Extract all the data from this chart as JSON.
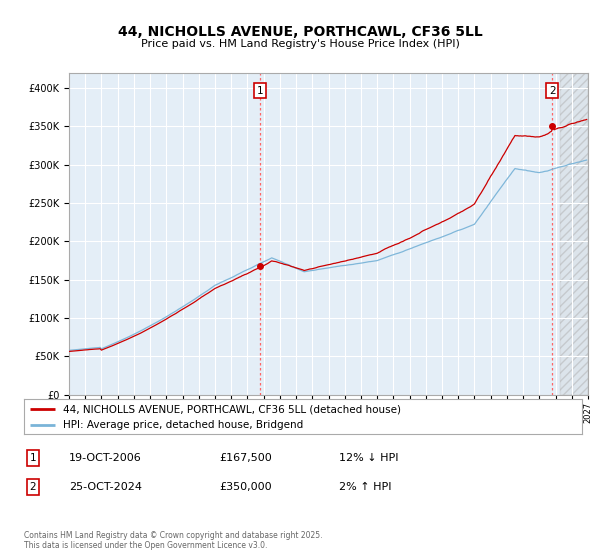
{
  "title": "44, NICHOLLS AVENUE, PORTHCAWL, CF36 5LL",
  "subtitle": "Price paid vs. HM Land Registry's House Price Index (HPI)",
  "legend_property": "44, NICHOLLS AVENUE, PORTHCAWL, CF36 5LL (detached house)",
  "legend_hpi": "HPI: Average price, detached house, Bridgend",
  "sale1_date": "19-OCT-2006",
  "sale1_price": "£167,500",
  "sale1_hpi": "12% ↓ HPI",
  "sale1_year": 2006.8,
  "sale1_value": 167500,
  "sale2_date": "25-OCT-2024",
  "sale2_price": "£350,000",
  "sale2_hpi": "2% ↑ HPI",
  "sale2_year": 2024.8,
  "sale2_value": 350000,
  "hpi_color": "#7ab4d8",
  "property_color": "#cc0000",
  "plot_bg": "#e4eef7",
  "grid_color": "#ffffff",
  "ylim": [
    0,
    420000
  ],
  "xlim_start": 1995,
  "xlim_end": 2027,
  "footnote": "Contains HM Land Registry data © Crown copyright and database right 2025.\nThis data is licensed under the Open Government Licence v3.0."
}
